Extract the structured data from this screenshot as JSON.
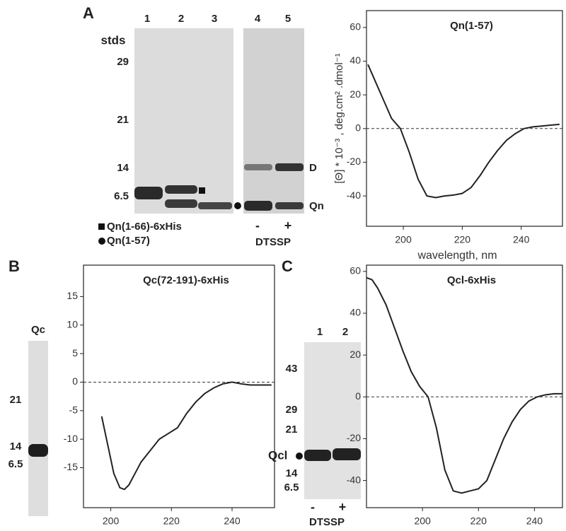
{
  "panel_labels": [
    "A",
    "B",
    "C"
  ],
  "gel_a": {
    "lanes": [
      1,
      2,
      3,
      4,
      5
    ],
    "stds_label": "stds",
    "markers": [
      29,
      21,
      14,
      6.5
    ],
    "bands": [
      "D",
      "Qn"
    ],
    "legend": [
      "Qn(1-66)-6xHis",
      "Qn(1-57)"
    ],
    "treatment": [
      "-",
      "+"
    ],
    "reagent": "DTSSP"
  },
  "gel_b": {
    "lane": "Qc",
    "markers": [
      21,
      14,
      6.5
    ]
  },
  "gel_c": {
    "lanes": [
      1,
      2
    ],
    "markers": [
      43,
      29,
      21,
      14,
      6.5
    ],
    "band": "Qcl",
    "treatment": [
      "-",
      "+"
    ],
    "reagent": "DTSSP"
  },
  "chart_data": [
    {
      "type": "line",
      "title": "Qn(1-57)",
      "xlabel": "wavelength, nm",
      "ylabel": "[Θ] * 10⁻³ , deg.cm² .dmol⁻¹",
      "xlim": [
        187.5,
        254
      ],
      "ylim": [
        -58,
        70
      ],
      "xticks": [
        200,
        220,
        240
      ],
      "yticks": [
        60,
        40,
        20,
        0,
        -20,
        -40
      ],
      "zero_line": true,
      "x": [
        188,
        190,
        193,
        196,
        199,
        202,
        205,
        208,
        211,
        214,
        217,
        220,
        223,
        226,
        229,
        232,
        235,
        238,
        241,
        244,
        247,
        250,
        253
      ],
      "series": [
        {
          "color": "#222222",
          "values": [
            38,
            30,
            18,
            6,
            0,
            -14,
            -30,
            -40,
            -41,
            -40,
            -39.5,
            -38.5,
            -35,
            -28,
            -20,
            -13,
            -7,
            -3,
            0,
            1,
            1.5,
            2,
            2.5
          ]
        }
      ]
    },
    {
      "type": "line",
      "title": "Qc(72-191)-6xHis",
      "xlim": [
        191,
        254
      ],
      "ylim": [
        -22,
        20.5
      ],
      "xticks": [
        200,
        220,
        240
      ],
      "yticks": [
        15,
        10,
        5,
        0,
        -5,
        -10,
        -15
      ],
      "zero_line": true,
      "x": [
        197,
        199,
        201,
        203,
        204.5,
        206,
        208,
        210,
        213,
        216,
        219,
        222,
        225,
        228,
        231,
        234,
        237,
        240,
        243,
        246,
        250,
        253
      ],
      "series": [
        {
          "color": "#222222",
          "values": [
            -6,
            -11,
            -16,
            -18.5,
            -18.8,
            -18,
            -16,
            -14,
            -12,
            -10,
            -9,
            -8,
            -5.5,
            -3.5,
            -2,
            -1,
            -0.3,
            0,
            -0.3,
            -0.5,
            -0.5,
            -0.5
          ]
        }
      ]
    },
    {
      "type": "line",
      "title": "Qcl-6xHis",
      "xlim": [
        180,
        250
      ],
      "ylim": [
        -53,
        63
      ],
      "xticks": [
        200,
        220,
        240
      ],
      "yticks": [
        60,
        40,
        20,
        0,
        -20,
        -40
      ],
      "zero_line": true,
      "x": [
        180,
        182,
        184,
        187,
        190,
        193,
        196,
        199,
        202,
        205,
        208,
        211,
        214,
        217,
        220,
        223,
        226,
        229,
        232,
        235,
        238,
        241,
        244,
        247,
        250
      ],
      "series": [
        {
          "color": "#222222",
          "values": [
            57,
            56,
            52,
            44,
            33,
            22,
            12,
            5,
            0,
            -15,
            -35,
            -45,
            -46,
            -45,
            -44,
            -40,
            -30,
            -20,
            -12,
            -6,
            -2,
            0,
            1,
            1.5,
            1.5
          ]
        }
      ]
    }
  ]
}
